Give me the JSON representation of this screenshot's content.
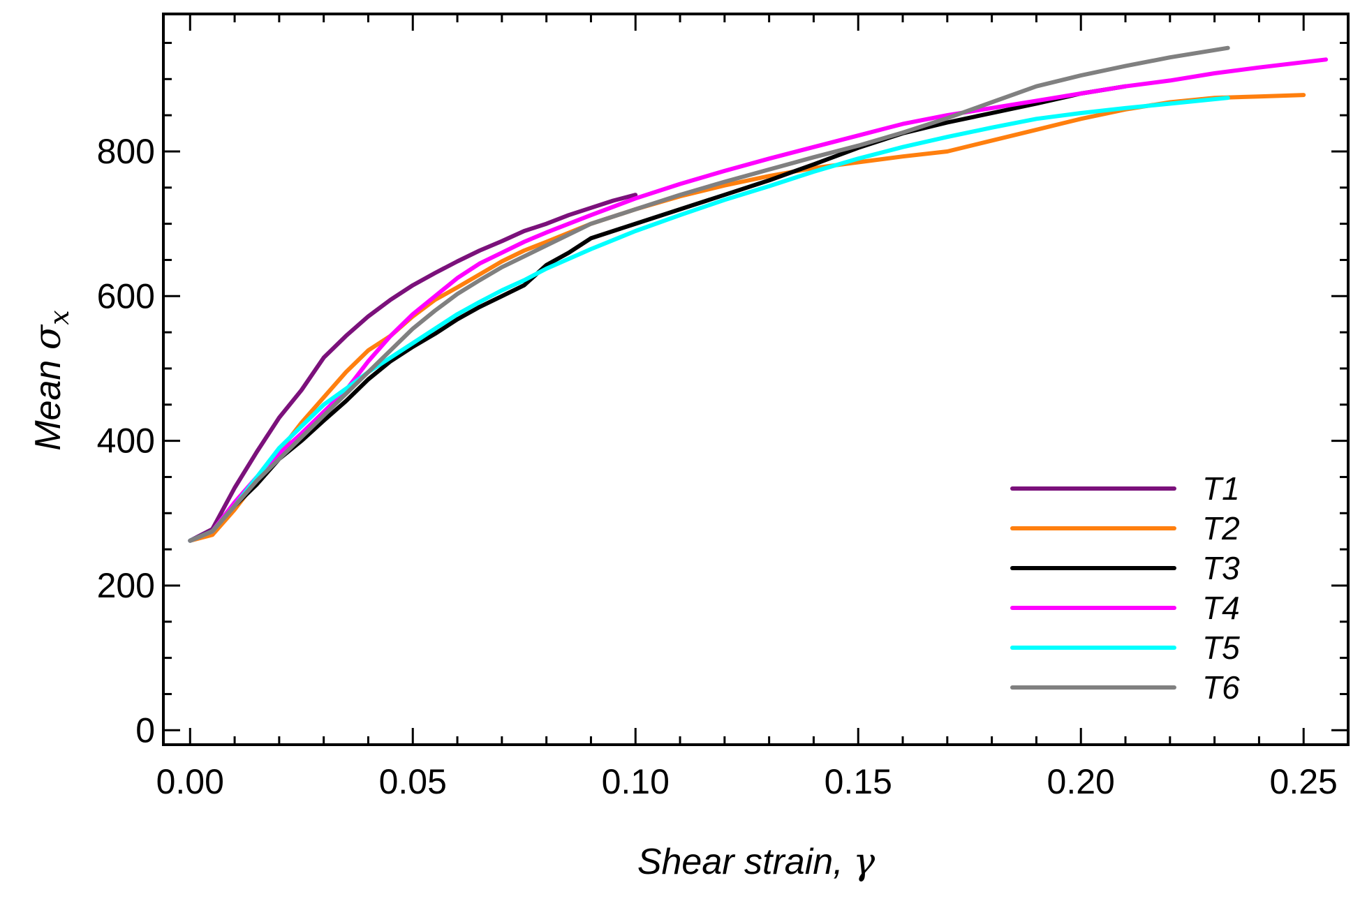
{
  "chart_data": {
    "type": "line",
    "title": "",
    "xlabel_prefix": "Shear strain, ",
    "xlabel_symbol": "γ",
    "ylabel_prefix": "Mean ",
    "ylabel_symbol": "σ",
    "ylabel_subscript": "x",
    "xlim": [
      -0.006,
      0.26
    ],
    "ylim": [
      -20,
      990
    ],
    "x_ticks": [
      0.0,
      0.05,
      0.1,
      0.15,
      0.2,
      0.25
    ],
    "x_tick_labels": [
      "0.00",
      "0.05",
      "0.10",
      "0.15",
      "0.20",
      "0.25"
    ],
    "y_ticks": [
      0,
      200,
      400,
      600,
      800
    ],
    "y_tick_labels": [
      "0",
      "200",
      "400",
      "600",
      "800"
    ],
    "legend_position": "bottom-right",
    "series": [
      {
        "name": "T1",
        "color": "#7b117b",
        "points": [
          [
            0,
            262
          ],
          [
            0.005,
            278
          ],
          [
            0.01,
            335
          ],
          [
            0.015,
            385
          ],
          [
            0.02,
            432
          ],
          [
            0.025,
            470
          ],
          [
            0.03,
            515
          ],
          [
            0.035,
            545
          ],
          [
            0.04,
            572
          ],
          [
            0.045,
            595
          ],
          [
            0.05,
            615
          ],
          [
            0.055,
            632
          ],
          [
            0.06,
            648
          ],
          [
            0.065,
            663
          ],
          [
            0.07,
            676
          ],
          [
            0.075,
            690
          ],
          [
            0.08,
            700
          ],
          [
            0.085,
            712
          ],
          [
            0.09,
            722
          ],
          [
            0.095,
            732
          ],
          [
            0.1,
            740
          ]
        ]
      },
      {
        "name": "T2",
        "color": "#ff7f0e",
        "points": [
          [
            0,
            262
          ],
          [
            0.005,
            270
          ],
          [
            0.01,
            305
          ],
          [
            0.015,
            345
          ],
          [
            0.02,
            385
          ],
          [
            0.025,
            425
          ],
          [
            0.03,
            460
          ],
          [
            0.035,
            495
          ],
          [
            0.04,
            525
          ],
          [
            0.045,
            545
          ],
          [
            0.05,
            572
          ],
          [
            0.055,
            595
          ],
          [
            0.06,
            612
          ],
          [
            0.065,
            630
          ],
          [
            0.07,
            648
          ],
          [
            0.075,
            663
          ],
          [
            0.08,
            675
          ],
          [
            0.09,
            700
          ],
          [
            0.1,
            720
          ],
          [
            0.11,
            738
          ],
          [
            0.12,
            753
          ],
          [
            0.13,
            766
          ],
          [
            0.14,
            777
          ],
          [
            0.15,
            785
          ],
          [
            0.16,
            793
          ],
          [
            0.17,
            800
          ],
          [
            0.18,
            815
          ],
          [
            0.19,
            830
          ],
          [
            0.2,
            845
          ],
          [
            0.21,
            858
          ],
          [
            0.22,
            868
          ],
          [
            0.23,
            874
          ],
          [
            0.24,
            876
          ],
          [
            0.25,
            878
          ]
        ]
      },
      {
        "name": "T3",
        "color": "#000000",
        "points": [
          [
            0,
            262
          ],
          [
            0.005,
            275
          ],
          [
            0.01,
            310
          ],
          [
            0.015,
            340
          ],
          [
            0.02,
            375
          ],
          [
            0.025,
            400
          ],
          [
            0.03,
            428
          ],
          [
            0.035,
            455
          ],
          [
            0.04,
            485
          ],
          [
            0.045,
            510
          ],
          [
            0.05,
            530
          ],
          [
            0.055,
            548
          ],
          [
            0.06,
            568
          ],
          [
            0.065,
            585
          ],
          [
            0.07,
            600
          ],
          [
            0.075,
            615
          ],
          [
            0.08,
            643
          ],
          [
            0.085,
            660
          ],
          [
            0.09,
            680
          ],
          [
            0.1,
            700
          ],
          [
            0.11,
            720
          ],
          [
            0.12,
            740
          ],
          [
            0.13,
            760
          ],
          [
            0.14,
            782
          ],
          [
            0.15,
            805
          ],
          [
            0.16,
            825
          ],
          [
            0.17,
            840
          ],
          [
            0.18,
            853
          ],
          [
            0.19,
            866
          ],
          [
            0.2,
            880
          ],
          [
            0.21,
            890
          ]
        ]
      },
      {
        "name": "T4",
        "color": "#ff00ff",
        "points": [
          [
            0,
            262
          ],
          [
            0.005,
            275
          ],
          [
            0.01,
            315
          ],
          [
            0.015,
            350
          ],
          [
            0.02,
            382
          ],
          [
            0.025,
            410
          ],
          [
            0.03,
            440
          ],
          [
            0.035,
            470
          ],
          [
            0.04,
            510
          ],
          [
            0.045,
            545
          ],
          [
            0.05,
            575
          ],
          [
            0.055,
            600
          ],
          [
            0.06,
            625
          ],
          [
            0.065,
            645
          ],
          [
            0.07,
            660
          ],
          [
            0.075,
            675
          ],
          [
            0.08,
            688
          ],
          [
            0.09,
            712
          ],
          [
            0.1,
            735
          ],
          [
            0.11,
            755
          ],
          [
            0.12,
            773
          ],
          [
            0.13,
            790
          ],
          [
            0.14,
            806
          ],
          [
            0.15,
            822
          ],
          [
            0.16,
            838
          ],
          [
            0.17,
            850
          ],
          [
            0.18,
            860
          ],
          [
            0.19,
            870
          ],
          [
            0.2,
            880
          ],
          [
            0.21,
            890
          ],
          [
            0.22,
            898
          ],
          [
            0.23,
            908
          ],
          [
            0.24,
            916
          ],
          [
            0.255,
            927
          ]
        ]
      },
      {
        "name": "T5",
        "color": "#00ffff",
        "points": [
          [
            0,
            262
          ],
          [
            0.005,
            275
          ],
          [
            0.01,
            310
          ],
          [
            0.015,
            350
          ],
          [
            0.02,
            390
          ],
          [
            0.025,
            420
          ],
          [
            0.03,
            450
          ],
          [
            0.035,
            472
          ],
          [
            0.04,
            495
          ],
          [
            0.045,
            515
          ],
          [
            0.05,
            535
          ],
          [
            0.055,
            555
          ],
          [
            0.06,
            575
          ],
          [
            0.065,
            592
          ],
          [
            0.07,
            608
          ],
          [
            0.075,
            622
          ],
          [
            0.08,
            638
          ],
          [
            0.09,
            665
          ],
          [
            0.1,
            690
          ],
          [
            0.11,
            712
          ],
          [
            0.12,
            733
          ],
          [
            0.13,
            752
          ],
          [
            0.14,
            772
          ],
          [
            0.15,
            790
          ],
          [
            0.16,
            806
          ],
          [
            0.17,
            820
          ],
          [
            0.18,
            833
          ],
          [
            0.19,
            845
          ],
          [
            0.2,
            853
          ],
          [
            0.21,
            860
          ],
          [
            0.22,
            866
          ],
          [
            0.233,
            874
          ]
        ]
      },
      {
        "name": "T6",
        "color": "#808080",
        "points": [
          [
            0,
            262
          ],
          [
            0.005,
            275
          ],
          [
            0.01,
            310
          ],
          [
            0.015,
            345
          ],
          [
            0.02,
            375
          ],
          [
            0.025,
            405
          ],
          [
            0.03,
            435
          ],
          [
            0.035,
            465
          ],
          [
            0.04,
            495
          ],
          [
            0.045,
            525
          ],
          [
            0.05,
            555
          ],
          [
            0.055,
            580
          ],
          [
            0.06,
            603
          ],
          [
            0.065,
            622
          ],
          [
            0.07,
            640
          ],
          [
            0.075,
            655
          ],
          [
            0.08,
            670
          ],
          [
            0.09,
            700
          ],
          [
            0.1,
            720
          ],
          [
            0.11,
            740
          ],
          [
            0.12,
            758
          ],
          [
            0.13,
            775
          ],
          [
            0.14,
            792
          ],
          [
            0.15,
            808
          ],
          [
            0.16,
            826
          ],
          [
            0.17,
            846
          ],
          [
            0.18,
            868
          ],
          [
            0.19,
            890
          ],
          [
            0.2,
            905
          ],
          [
            0.21,
            918
          ],
          [
            0.22,
            930
          ],
          [
            0.233,
            943
          ]
        ]
      }
    ]
  }
}
